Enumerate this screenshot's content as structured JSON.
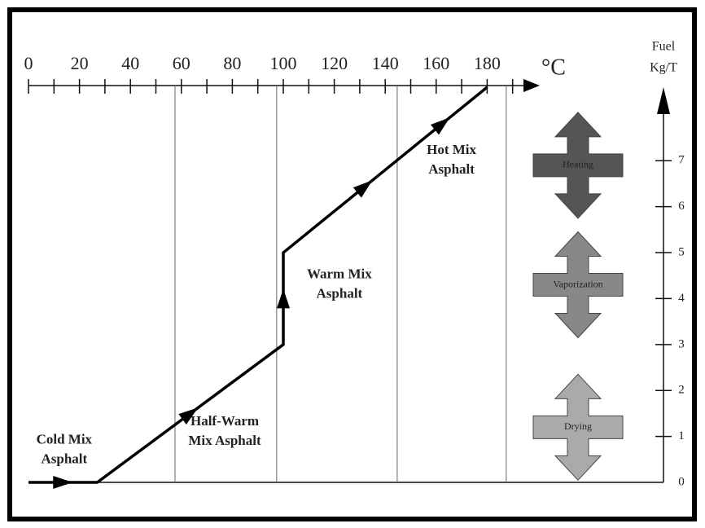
{
  "chart_data": {
    "type": "line",
    "x_label": "°C",
    "y_label": [
      "Fuel",
      "Kg/T"
    ],
    "xlim": [
      0,
      200
    ],
    "xticks": [
      0,
      20,
      40,
      60,
      80,
      100,
      120,
      140,
      160,
      180
    ],
    "xminorticks": [
      10,
      30,
      50,
      70,
      90,
      110,
      130,
      150,
      170,
      190
    ],
    "ylim": [
      0,
      8.6
    ],
    "yticks": [
      0,
      1,
      2,
      3,
      4,
      5,
      6,
      7
    ],
    "x": [
      0,
      27,
      100,
      100,
      180
    ],
    "series": [
      {
        "color": "#000000",
        "values": [
          0,
          0,
          3,
          5,
          8.6
        ]
      }
    ],
    "boundaries": [
      57.5,
      97.4,
      144.7,
      187.5
    ],
    "regions": [
      {
        "lines": [
          "Cold Mix",
          "Asphalt"
        ],
        "x": 14,
        "y": 0.7
      },
      {
        "lines": [
          "Half-Warm",
          "Mix Asphalt"
        ],
        "x": 77,
        "y": 1.1
      },
      {
        "lines": [
          "Warm Mix",
          "Asphalt"
        ],
        "x": 122,
        "y": 4.3
      },
      {
        "lines": [
          "Hot Mix",
          "Asphalt"
        ],
        "x": 166,
        "y": 7.0
      }
    ],
    "processes": [
      {
        "label": "Heating",
        "color": "#555555",
        "y": 6.9
      },
      {
        "label": "Vaporization",
        "color": "#888888",
        "y": 4.3
      },
      {
        "label": "Drying",
        "color": "#aaaaaa",
        "y": 1.2
      }
    ]
  }
}
